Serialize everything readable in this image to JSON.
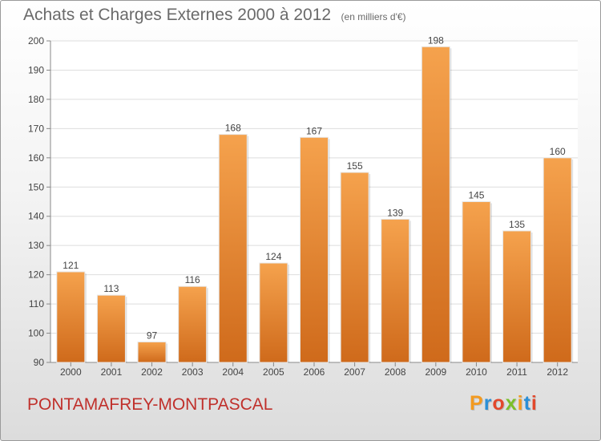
{
  "chart_data": {
    "type": "bar",
    "title": "Achats et Charges Externes 2000 à 2012",
    "subtitle": "(en milliers d'€)",
    "categories": [
      "2000",
      "2001",
      "2002",
      "2003",
      "2004",
      "2005",
      "2006",
      "2007",
      "2008",
      "2009",
      "2010",
      "2011",
      "2012"
    ],
    "values": [
      121,
      113,
      97,
      116,
      168,
      124,
      167,
      155,
      139,
      198,
      145,
      135,
      160
    ],
    "ylim": [
      90,
      200
    ],
    "yticks": [
      90,
      100,
      110,
      120,
      130,
      140,
      150,
      160,
      170,
      180,
      190,
      200
    ],
    "grid": true,
    "bar_color_top": "#f5a24d",
    "bar_color_bottom": "#cf6a1b"
  },
  "footer": {
    "commune": "PONTAMAFREY-MONTPASCAL",
    "brand": "Proxiti"
  },
  "colors": {
    "title": "#6a6a6a",
    "commune": "#c0302b",
    "brand_letters": [
      "#f39a1f",
      "#2b8fd6",
      "#e2482c",
      "#7bbf2a",
      "#f39a1f",
      "#2b8fd6",
      "#e2482c"
    ]
  }
}
